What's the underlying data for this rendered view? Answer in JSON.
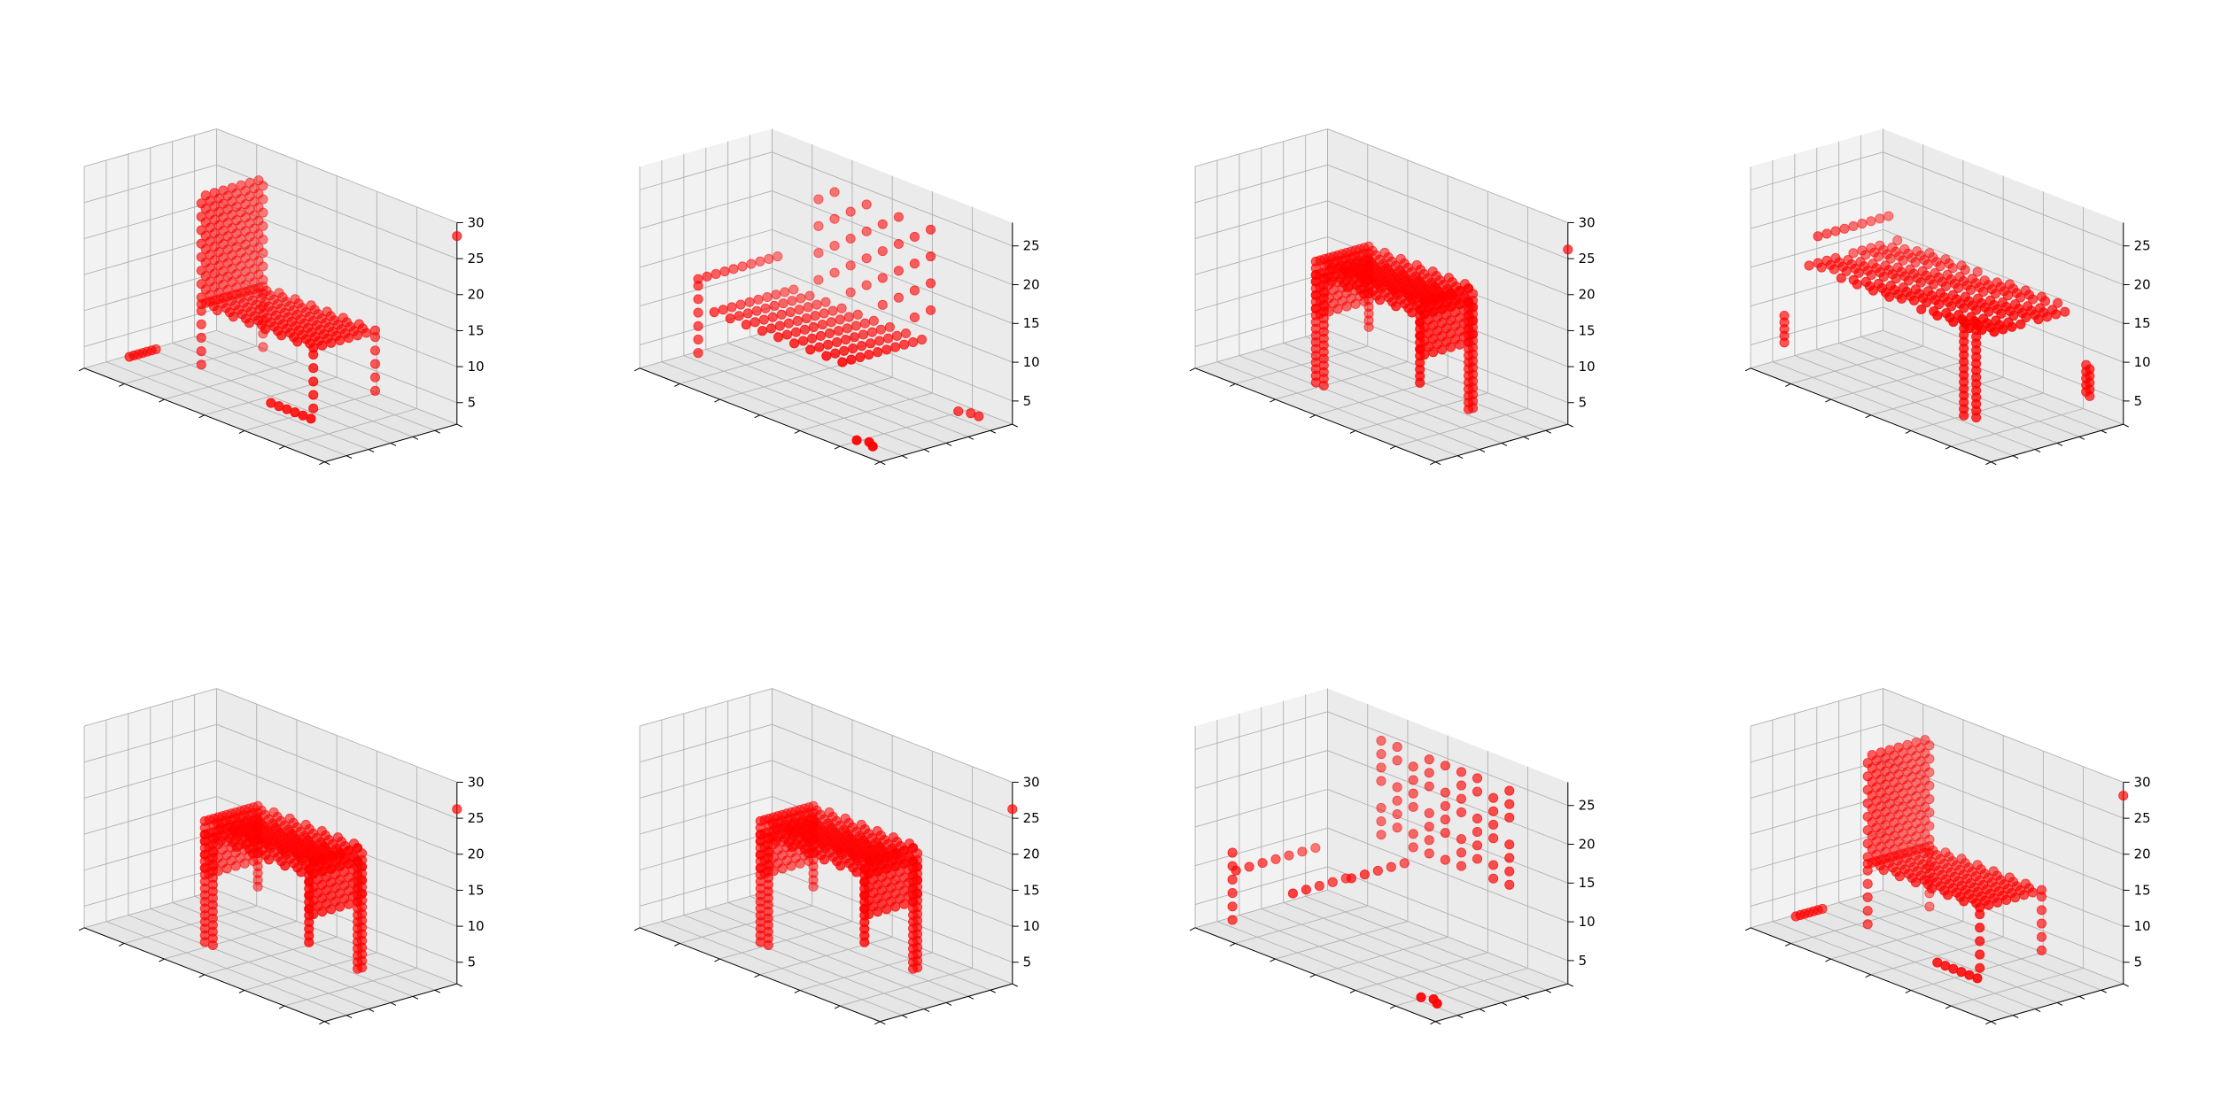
{
  "figure": {
    "layout": "2x4 grid of 3D scatter plots",
    "background": "#ffffff",
    "pane_color": "#f2f2f2",
    "grid_color": "#b0b0b0",
    "point_color": "#ff0000"
  },
  "chart_data": [
    {
      "type": "scatter",
      "view": "3d",
      "subject": "chair-voxels",
      "shape": "side-chair",
      "title": "",
      "xlabel": "",
      "ylabel": "",
      "zlabel": "",
      "zlim": [
        2,
        30
      ],
      "z_ticks": [
        "5",
        "10",
        "15",
        "20",
        "25",
        "30"
      ],
      "grid": true,
      "outlier": [
        30,
        30,
        28
      ],
      "series": [
        {
          "marker_color": "#ff0000"
        }
      ]
    },
    {
      "type": "scatter",
      "view": "3d",
      "subject": "chair-voxels",
      "shape": "sparse-armchair",
      "title": "",
      "xlabel": "",
      "ylabel": "",
      "zlabel": "",
      "zlim": [
        2,
        28
      ],
      "z_ticks": [
        "5",
        "10",
        "15",
        "20",
        "25"
      ],
      "grid": true,
      "outlier": null,
      "series": [
        {
          "marker_color": "#ff0000"
        }
      ]
    },
    {
      "type": "scatter",
      "view": "3d",
      "subject": "chair-voxels",
      "shape": "stool",
      "title": "",
      "xlabel": "",
      "ylabel": "",
      "zlabel": "",
      "zlim": [
        2,
        30
      ],
      "z_ticks": [
        "5",
        "10",
        "15",
        "20",
        "25",
        "30"
      ],
      "grid": true,
      "outlier": [
        30,
        30,
        26
      ],
      "series": [
        {
          "marker_color": "#ff0000"
        }
      ]
    },
    {
      "type": "scatter",
      "view": "3d",
      "subject": "chair-voxels",
      "shape": "wide-seat",
      "title": "",
      "xlabel": "",
      "ylabel": "",
      "zlabel": "",
      "zlim": [
        2,
        28
      ],
      "z_ticks": [
        "5",
        "10",
        "15",
        "20",
        "25"
      ],
      "grid": true,
      "outlier": null,
      "series": [
        {
          "marker_color": "#ff0000"
        }
      ]
    },
    {
      "type": "scatter",
      "view": "3d",
      "subject": "chair-voxels",
      "shape": "stool",
      "title": "",
      "xlabel": "",
      "ylabel": "",
      "zlabel": "",
      "zlim": [
        2,
        30
      ],
      "z_ticks": [
        "5",
        "10",
        "15",
        "20",
        "25",
        "30"
      ],
      "grid": true,
      "outlier": [
        30,
        30,
        26
      ],
      "series": [
        {
          "marker_color": "#ff0000"
        }
      ]
    },
    {
      "type": "scatter",
      "view": "3d",
      "subject": "chair-voxels",
      "shape": "stool",
      "title": "",
      "xlabel": "",
      "ylabel": "",
      "zlabel": "",
      "zlim": [
        2,
        30
      ],
      "z_ticks": [
        "5",
        "10",
        "15",
        "20",
        "25",
        "30"
      ],
      "grid": true,
      "outlier": [
        30,
        30,
        26
      ],
      "series": [
        {
          "marker_color": "#ff0000"
        }
      ]
    },
    {
      "type": "scatter",
      "view": "3d",
      "subject": "chair-voxels",
      "shape": "sparse-back",
      "title": "",
      "xlabel": "",
      "ylabel": "",
      "zlabel": "",
      "zlim": [
        2,
        28
      ],
      "z_ticks": [
        "5",
        "10",
        "15",
        "20",
        "25"
      ],
      "grid": true,
      "outlier": null,
      "series": [
        {
          "marker_color": "#ff0000"
        }
      ]
    },
    {
      "type": "scatter",
      "view": "3d",
      "subject": "chair-voxels",
      "shape": "side-chair",
      "title": "",
      "xlabel": "",
      "ylabel": "",
      "zlabel": "",
      "zlim": [
        2,
        30
      ],
      "z_ticks": [
        "5",
        "10",
        "15",
        "20",
        "25",
        "30"
      ],
      "grid": true,
      "outlier": [
        30,
        30,
        28
      ],
      "series": [
        {
          "marker_color": "#ff0000"
        }
      ]
    }
  ]
}
